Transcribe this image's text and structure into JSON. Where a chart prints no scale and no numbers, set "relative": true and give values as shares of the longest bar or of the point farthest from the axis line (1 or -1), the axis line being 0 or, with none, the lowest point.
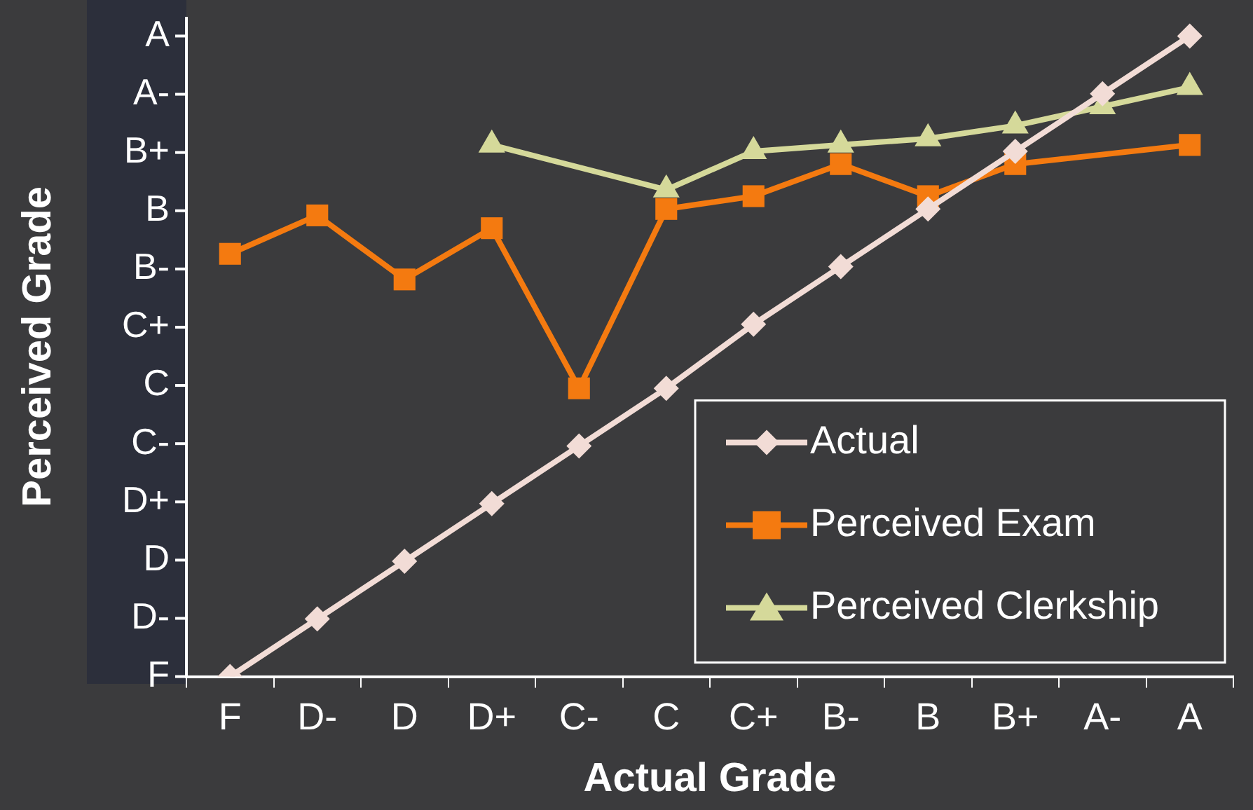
{
  "chart_data": {
    "type": "line",
    "xlabel": "Actual Grade",
    "ylabel": "Perceived Grade",
    "relative": true,
    "categories": [
      "F",
      "D-",
      "D",
      "D+",
      "C-",
      "C",
      "C+",
      "B-",
      "B",
      "B+",
      "A-",
      "A"
    ],
    "series": [
      {
        "name": "Actual",
        "color": "#f2dcd6",
        "marker": "diamond",
        "values": [
          0,
          0.09,
          0.18,
          0.27,
          0.36,
          0.45,
          0.55,
          0.64,
          0.73,
          0.82,
          0.91,
          1
        ]
      },
      {
        "name": "Perceived Exam",
        "color": "#f47a10",
        "marker": "square",
        "values": [
          0.66,
          0.72,
          0.62,
          0.7,
          0.45,
          0.73,
          0.75,
          0.8,
          0.75,
          0.8,
          null,
          0.83
        ]
      },
      {
        "name": "Perceived Clerkship",
        "color": "#d5d99a",
        "marker": "triangle",
        "values": [
          null,
          null,
          null,
          0.83,
          null,
          0.76,
          0.82,
          0.83,
          0.84,
          0.86,
          0.89,
          0.92
        ]
      }
    ],
    "annotations": [
      "F",
      "D-",
      "D",
      "D+",
      "C-",
      "C",
      "C+",
      "B-",
      "B",
      "B+",
      "A-",
      "A"
    ],
    "grid": false,
    "legend": "bottom right",
    "line_style": "solid"
  }
}
